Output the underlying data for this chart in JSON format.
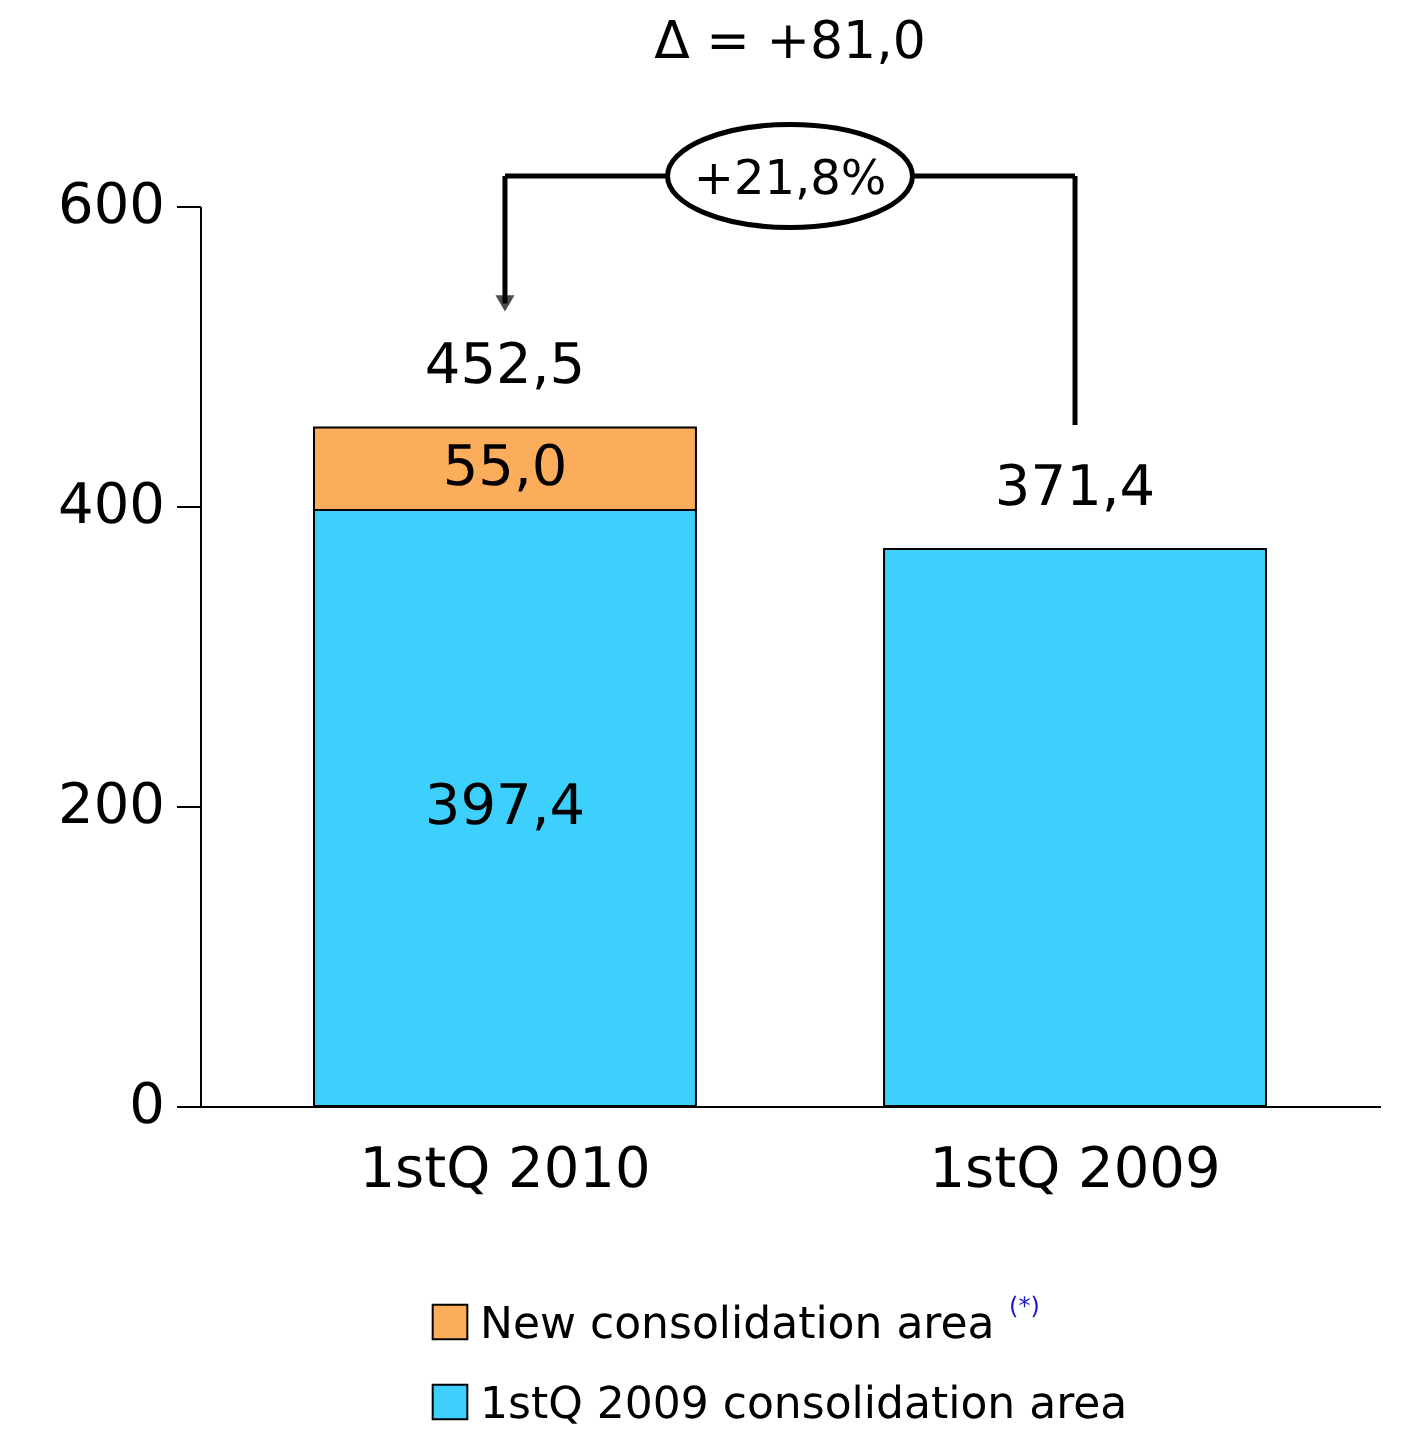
{
  "chart_data": {
    "type": "bar",
    "stacked": true,
    "categories": [
      "1stQ 2010",
      "1stQ 2009"
    ],
    "series": [
      {
        "name": "1stQ 2009 consolidation area",
        "color": "#3dd0fc",
        "values": [
          397.4,
          371.4
        ],
        "value_labels": [
          "397,4",
          null
        ]
      },
      {
        "name": "New consolidation area $^{(*)}$",
        "color": "#fbad5c",
        "values": [
          55.0,
          null
        ],
        "value_labels": [
          "55,0",
          null
        ]
      }
    ],
    "totals": [
      "452,5",
      "371,4"
    ],
    "ylim": [
      0,
      600
    ],
    "yticks": [
      0,
      200,
      400,
      600
    ],
    "grid": false,
    "legend": "bottom",
    "annotations": [
      "Δ = +81,0",
      "+21,8%"
    ]
  }
}
